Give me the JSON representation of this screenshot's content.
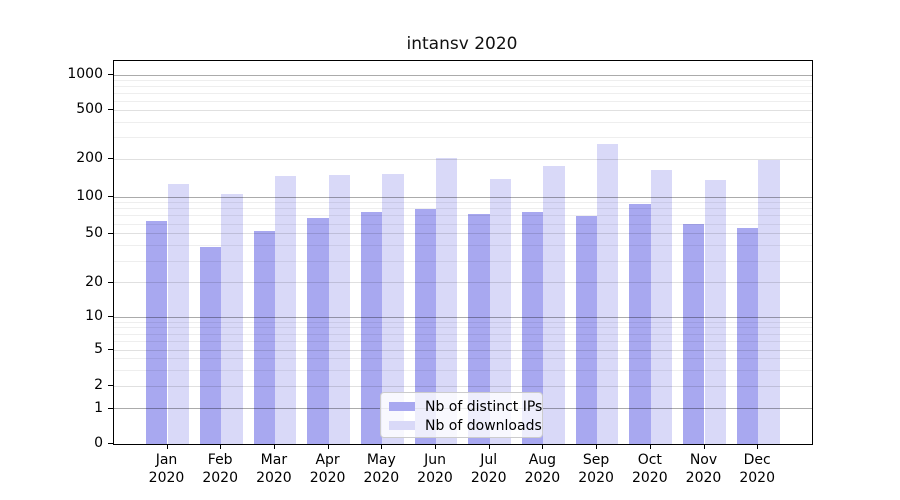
{
  "chart_data": {
    "type": "bar",
    "title": "intansv 2020",
    "year_label": "2020",
    "categories": [
      "Jan",
      "Feb",
      "Mar",
      "Apr",
      "May",
      "Jun",
      "Jul",
      "Aug",
      "Sep",
      "Oct",
      "Nov",
      "Dec"
    ],
    "series": [
      {
        "name": "Nb of distinct IPs",
        "color": "#a8a8f0",
        "values": [
          63,
          39,
          53,
          67,
          76,
          80,
          72,
          76,
          70,
          88,
          60,
          56
        ]
      },
      {
        "name": "Nb of downloads",
        "color": "#d9d9f8",
        "values": [
          126,
          105,
          147,
          149,
          152,
          204,
          139,
          177,
          268,
          163,
          137,
          197
        ]
      }
    ],
    "xlabel": "",
    "ylabel": "",
    "y_ticks": [
      0,
      1,
      2,
      5,
      10,
      20,
      50,
      100,
      200,
      500,
      1000
    ],
    "yscale": "log above 1, linear segment 0-1",
    "ylim": [
      0,
      1300
    ],
    "grid": true,
    "legend_position": "lower center, inside plot"
  }
}
